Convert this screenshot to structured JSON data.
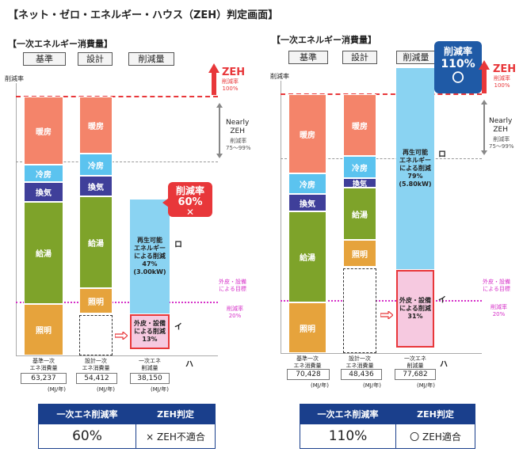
{
  "title": "【ネット・ゼロ・エネルギー・ハウス（ZEH）判定画面】",
  "panels": [
    {
      "heading": "【一次エネルギー消費量】",
      "col_headers": [
        "基準",
        "設計",
        "削減量"
      ],
      "y_label": "削減率",
      "base_segments": [
        "暖房",
        "冷房",
        "換気",
        "給湯",
        "照明"
      ],
      "design_segments": [
        "暖房",
        "冷房",
        "換気",
        "給湯",
        "照明"
      ],
      "renewable_text": [
        "再生可能",
        "エネルギー",
        "による削減",
        "47%",
        "(3.00kW)"
      ],
      "reduction_text": [
        "外皮・設備",
        "による削減",
        "13%"
      ],
      "marker_ro": "ロ",
      "marker_i": "イ",
      "marker_ha": "ハ",
      "zeh_label": "ZEH",
      "zeh_sub": [
        "削減率",
        "100%"
      ],
      "nearly_label": [
        "Nearly",
        "ZEH"
      ],
      "nearly_sub": [
        "削減率",
        "75～99%"
      ],
      "target_label": [
        "外皮・設備",
        "による目標"
      ],
      "target_sub": [
        "削減率",
        "20%"
      ],
      "callout_title": "削減率",
      "callout_value": "60%",
      "callout_mark": "✕",
      "bottom_labels": [
        [
          "基準一次",
          "エネ消費量"
        ],
        [
          "設計一次",
          "エネ消費量"
        ],
        [
          "一次エネ",
          "削減量"
        ]
      ],
      "values": [
        "63,237",
        "54,412",
        "38,150"
      ],
      "unit": "(MJ/年)",
      "table": {
        "h1": "一次エネ削減率",
        "h2": "ZEH判定",
        "rate": "60%",
        "judge": "× ZEH不適合"
      }
    },
    {
      "heading": "【一次エネルギー消費量】",
      "col_headers": [
        "基準",
        "設計",
        "削減量"
      ],
      "y_label": "削減率",
      "base_segments": [
        "暖房",
        "冷房",
        "換気",
        "給湯",
        "照明"
      ],
      "design_segments": [
        "暖房",
        "冷房",
        "換気",
        "給湯",
        "照明"
      ],
      "renewable_text": [
        "再生可能",
        "エネルギー",
        "による削減",
        "79%",
        "(5.80kW)"
      ],
      "reduction_text": [
        "外皮・設備",
        "による削減",
        "31%"
      ],
      "marker_ro": "ロ",
      "marker_i": "イ",
      "marker_ha": "ハ",
      "zeh_label": "ZEH",
      "zeh_sub": [
        "削減率",
        "100%"
      ],
      "nearly_label": [
        "Nearly",
        "ZEH"
      ],
      "nearly_sub": [
        "削減率",
        "75～99%"
      ],
      "target_label": [
        "外皮・設備",
        "による目標"
      ],
      "target_sub": [
        "削減率",
        "20%"
      ],
      "callout_title": "削減率",
      "callout_value": "110%",
      "callout_mark": "〇",
      "bottom_labels": [
        [
          "基準一次",
          "エネ消費量"
        ],
        [
          "設計一次",
          "エネ消費量"
        ],
        [
          "一次エネ",
          "削減量"
        ]
      ],
      "values": [
        "70,428",
        "48,436",
        "77,682"
      ],
      "unit": "(MJ/年)",
      "table": {
        "h1": "一次エネ削減率",
        "h2": "ZEH判定",
        "rate": "110%",
        "judge": "〇 ZEH適合"
      }
    }
  ],
  "colors": {
    "heating": "#f4846a",
    "cooling": "#5bc3ef",
    "ventilation": "#3f3f9a",
    "hotwater": "#7ea32a",
    "lighting": "#e6a33c",
    "renewable": "#8ad3f2",
    "reduction": "#f6c9e0",
    "accent_red": "#e8373a",
    "navy": "#1a3f8c"
  }
}
